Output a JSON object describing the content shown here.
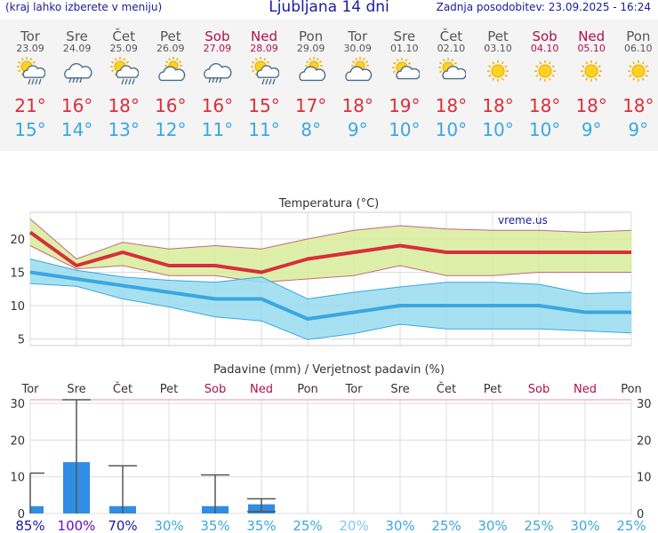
{
  "header": {
    "left_note": "(kraj lahko izberete v meniju)",
    "title": "Ljubljana 14 dni",
    "updated": "Zadnja posodobitev: 23.09.2025 - 16:24"
  },
  "colors": {
    "weekend": "#b0104a",
    "max_temp": "#d92e3c",
    "min_temp": "#3aa7e2",
    "precip_bar": "#2f8de4",
    "band_max": "#d8ec9a",
    "band_min": "#98dcee"
  },
  "forecast": [
    {
      "day": "Tor",
      "date": "23.09",
      "icon": "sun-cloud-rain-icon",
      "max": "21°",
      "min": "15°",
      "weekend": false
    },
    {
      "day": "Sre",
      "date": "24.09",
      "icon": "cloud-rain-icon",
      "max": "16°",
      "min": "14°",
      "weekend": false
    },
    {
      "day": "Čet",
      "date": "25.09",
      "icon": "sun-cloud-rain-icon",
      "max": "18°",
      "min": "13°",
      "weekend": false
    },
    {
      "day": "Pet",
      "date": "26.09",
      "icon": "cloud-sun-icon",
      "max": "16°",
      "min": "12°",
      "weekend": false
    },
    {
      "day": "Sob",
      "date": "27.09",
      "icon": "cloud-rain-icon",
      "max": "16°",
      "min": "11°",
      "weekend": true
    },
    {
      "day": "Ned",
      "date": "28.09",
      "icon": "sun-cloud-rain-icon",
      "max": "15°",
      "min": "11°",
      "weekend": true
    },
    {
      "day": "Pon",
      "date": "29.09",
      "icon": "cloud-sun-icon",
      "max": "17°",
      "min": "8°",
      "weekend": false
    },
    {
      "day": "Tor",
      "date": "30.09",
      "icon": "cloud-sun-icon",
      "max": "18°",
      "min": "9°",
      "weekend": false
    },
    {
      "day": "Sre",
      "date": "01.10",
      "icon": "sun-cloud-icon",
      "max": "19°",
      "min": "10°",
      "weekend": false
    },
    {
      "day": "Čet",
      "date": "02.10",
      "icon": "sun-cloud-icon",
      "max": "18°",
      "min": "10°",
      "weekend": false
    },
    {
      "day": "Pet",
      "date": "03.10",
      "icon": "sun-icon",
      "max": "18°",
      "min": "10°",
      "weekend": false
    },
    {
      "day": "Sob",
      "date": "04.10",
      "icon": "sun-icon",
      "max": "18°",
      "min": "10°",
      "weekend": true
    },
    {
      "day": "Ned",
      "date": "05.10",
      "icon": "sun-icon",
      "max": "18°",
      "min": "9°",
      "weekend": true
    },
    {
      "day": "Pon",
      "date": "06.10",
      "icon": "sun-icon",
      "max": "18°",
      "min": "9°",
      "weekend": false
    }
  ],
  "chart_data": [
    {
      "type": "line",
      "title": "Temperatura (°C)",
      "watermark": "vreme.us",
      "x": [
        "23.09",
        "24.09",
        "25.09",
        "26.09",
        "27.09",
        "28.09",
        "29.09",
        "30.09",
        "01.10",
        "02.10",
        "03.10",
        "04.10",
        "05.10",
        "06.10"
      ],
      "ylim": [
        4,
        24
      ],
      "yticks": [
        5,
        10,
        15,
        20
      ],
      "grid": true,
      "series": [
        {
          "values": [
            21,
            16,
            18,
            16,
            16,
            15,
            17,
            18,
            19,
            18,
            18,
            18,
            18,
            18
          ]
        },
        {
          "values": [
            15,
            14,
            13,
            12,
            11,
            11,
            8,
            9,
            10,
            10,
            10,
            10,
            9,
            9
          ]
        },
        {
          "values": [
            23,
            17,
            19.5,
            18.5,
            19,
            18.5,
            20,
            21.3,
            22,
            21.5,
            21.3,
            21.3,
            21,
            21.3
          ]
        },
        {
          "values": [
            19,
            15.5,
            16,
            14.5,
            14.5,
            13.5,
            14,
            14.5,
            16,
            14.5,
            14.5,
            15,
            15,
            15
          ]
        },
        {
          "values": [
            17,
            15.3,
            14.3,
            13.8,
            13.5,
            14.3,
            11,
            12,
            12.8,
            13.5,
            13.5,
            13.2,
            11.8,
            12
          ]
        },
        {
          "values": [
            13.3,
            12.9,
            11,
            9.8,
            8.3,
            7.7,
            4.9,
            5.8,
            7.2,
            6.5,
            6.5,
            6.5,
            6.2,
            5.9
          ]
        }
      ]
    },
    {
      "type": "bar",
      "title": "Padavine (mm) / Verjetnost padavin (%)",
      "categories": [
        "Tor",
        "Sre",
        "Čet",
        "Pet",
        "Sob",
        "Ned",
        "Pon",
        "Tor",
        "Sre",
        "Čet",
        "Pet",
        "Sob",
        "Ned",
        "Pon"
      ],
      "values": [
        2,
        14,
        2,
        0,
        2,
        2.5,
        0,
        0,
        0,
        0,
        0,
        0,
        0,
        0
      ],
      "error_high": [
        11,
        31,
        13,
        0,
        10.5,
        4,
        0,
        0,
        0,
        0,
        0,
        0,
        0,
        0
      ],
      "error_low": [
        0,
        0,
        0,
        0,
        0,
        0.5,
        0,
        0,
        0,
        0,
        0,
        0,
        0,
        0
      ],
      "ylim": [
        0,
        31
      ],
      "yticks": [
        0,
        10,
        20,
        30
      ],
      "probability": [
        "85%",
        "100%",
        "70%",
        "30%",
        "35%",
        "35%",
        "25%",
        "20%",
        "30%",
        "25%",
        "30%",
        "25%",
        "30%",
        "25%"
      ],
      "probability_colors": [
        "#1a1aa0",
        "#6a0cc0",
        "#1a1aa0",
        "#3aa7e2",
        "#3aa7e2",
        "#3aa7e2",
        "#3aa7e2",
        "#7fcaf0",
        "#3aa7e2",
        "#3aa7e2",
        "#3aa7e2",
        "#3aa7e2",
        "#3aa7e2",
        "#3aa7e2"
      ]
    }
  ]
}
